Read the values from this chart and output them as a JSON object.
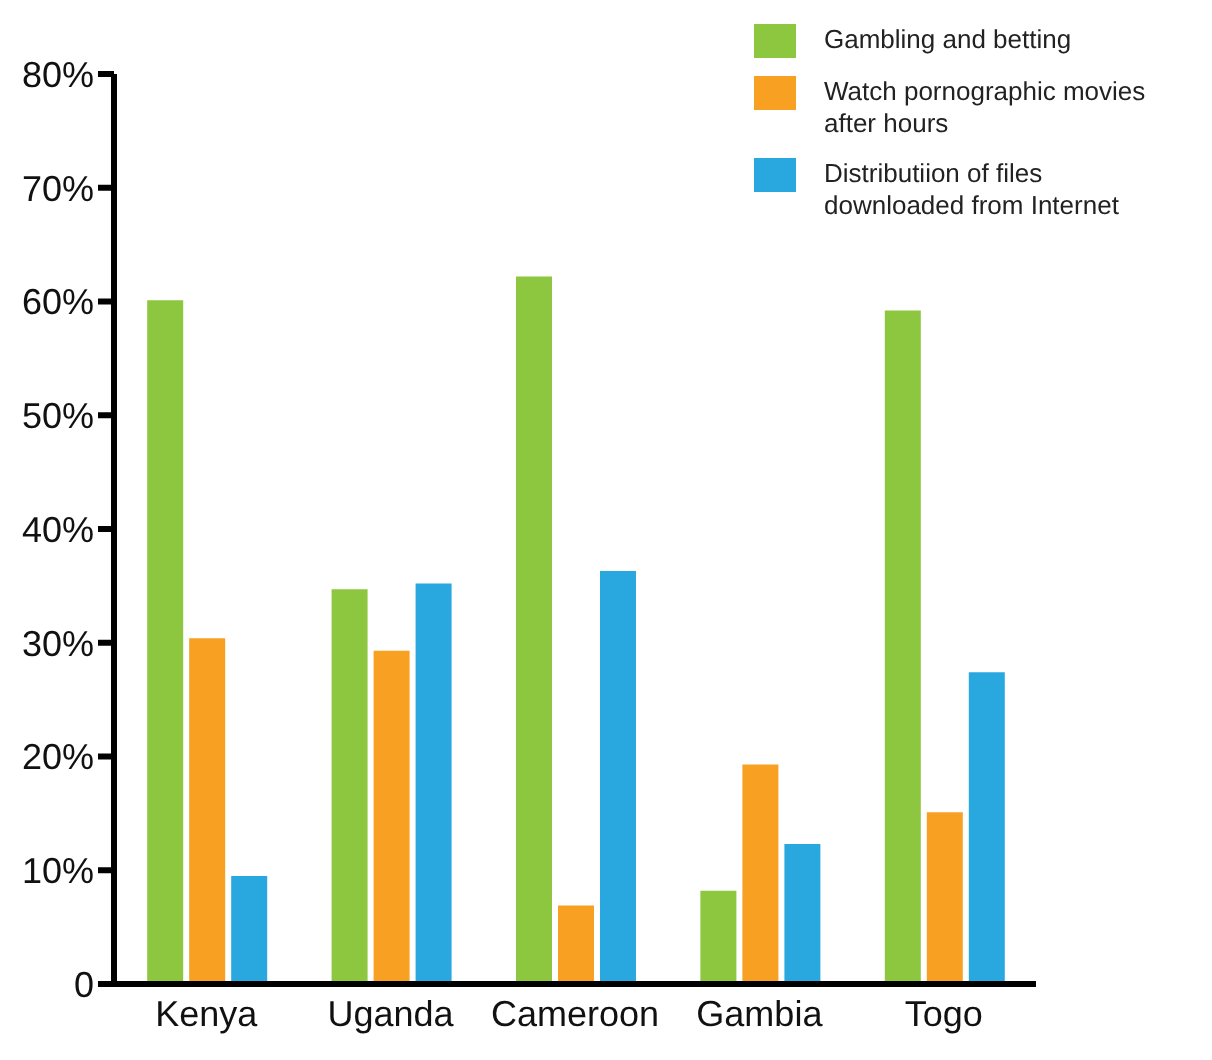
{
  "chart_data": {
    "type": "bar",
    "categories": [
      "Kenya",
      "Uganda",
      "Cameroon",
      "Gambia",
      "Togo"
    ],
    "series": [
      {
        "name": "Gambling and betting",
        "color": "#8dc63f",
        "values": [
          60.1,
          34.7,
          62.2,
          8.2,
          59.2
        ]
      },
      {
        "name": "Watch pornographic movies after hours",
        "color": "#f7a021",
        "values": [
          30.4,
          29.3,
          6.9,
          19.3,
          15.1
        ]
      },
      {
        "name": "Distributiion of files downloaded from Internet",
        "color": "#29a8e0",
        "values": [
          9.5,
          35.2,
          36.3,
          12.3,
          27.4
        ]
      }
    ],
    "ylim": [
      0,
      80
    ],
    "yticks": [
      0,
      {
        "value": 10,
        "label": "10%"
      },
      {
        "value": 20,
        "label": "20%"
      },
      {
        "value": 30,
        "label": "30%"
      },
      {
        "value": 40,
        "label": "40%"
      },
      {
        "value": 50,
        "label": "50%"
      },
      {
        "value": 60,
        "label": "60%"
      },
      {
        "value": 70,
        "label": "70%"
      },
      {
        "value": 80,
        "label": "80%"
      }
    ],
    "grid": false,
    "legend": "top right"
  }
}
